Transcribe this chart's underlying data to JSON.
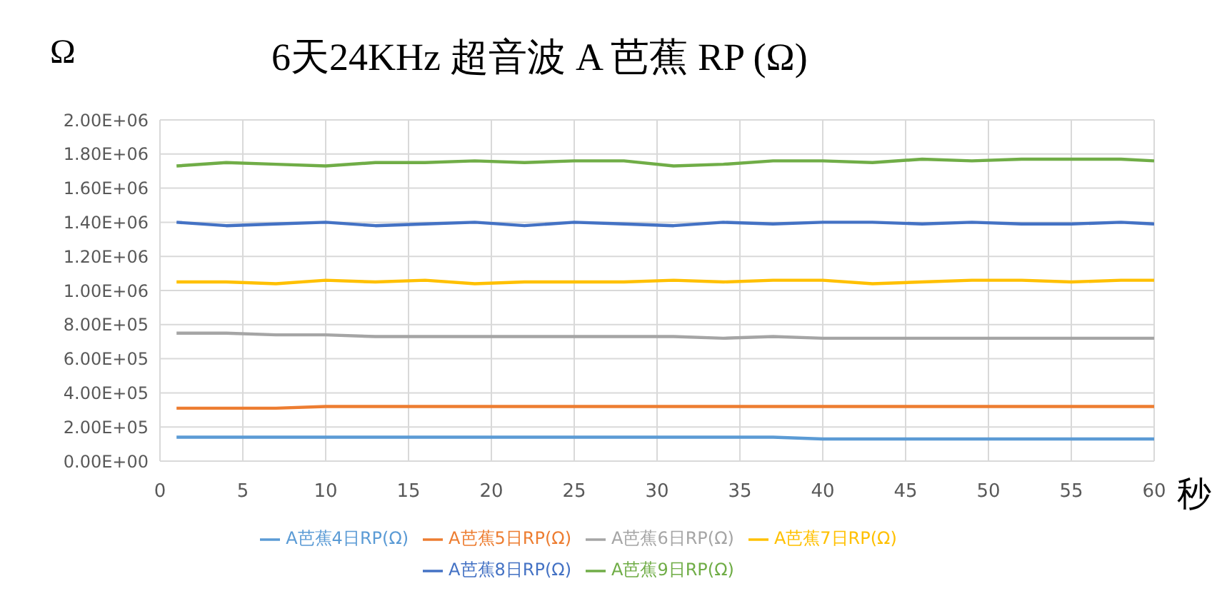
{
  "chart_data": {
    "type": "line",
    "title": "6天24KHz 超音波 A 芭蕉 RP (Ω)",
    "ylabel": "Ω",
    "xlabel": "秒",
    "x": [
      1,
      4,
      7,
      10,
      13,
      16,
      19,
      22,
      25,
      28,
      31,
      34,
      37,
      40,
      43,
      46,
      49,
      52,
      55,
      58,
      60
    ],
    "series": [
      {
        "name": "A芭蕉4日RP(Ω)",
        "color": "#5b9bd5",
        "values": [
          140000,
          140000,
          140000,
          140000,
          140000,
          140000,
          140000,
          140000,
          140000,
          140000,
          140000,
          140000,
          140000,
          130000,
          130000,
          130000,
          130000,
          130000,
          130000,
          130000,
          130000
        ]
      },
      {
        "name": "A芭蕉5日RP(Ω)",
        "color": "#ed7d31",
        "values": [
          310000,
          310000,
          310000,
          320000,
          320000,
          320000,
          320000,
          320000,
          320000,
          320000,
          320000,
          320000,
          320000,
          320000,
          320000,
          320000,
          320000,
          320000,
          320000,
          320000,
          320000
        ]
      },
      {
        "name": "A芭蕉6日RP(Ω)",
        "color": "#a5a5a5",
        "values": [
          750000,
          750000,
          740000,
          740000,
          730000,
          730000,
          730000,
          730000,
          730000,
          730000,
          730000,
          720000,
          730000,
          720000,
          720000,
          720000,
          720000,
          720000,
          720000,
          720000,
          720000
        ]
      },
      {
        "name": "A芭蕉7日RP(Ω)",
        "color": "#ffc000",
        "values": [
          1050000,
          1050000,
          1040000,
          1060000,
          1050000,
          1060000,
          1040000,
          1050000,
          1050000,
          1050000,
          1060000,
          1050000,
          1060000,
          1060000,
          1040000,
          1050000,
          1060000,
          1060000,
          1050000,
          1060000,
          1060000
        ]
      },
      {
        "name": "A芭蕉8日RP(Ω)",
        "color": "#4472c4",
        "values": [
          1400000,
          1380000,
          1390000,
          1400000,
          1380000,
          1390000,
          1400000,
          1380000,
          1400000,
          1390000,
          1380000,
          1400000,
          1390000,
          1400000,
          1400000,
          1390000,
          1400000,
          1390000,
          1390000,
          1400000,
          1390000
        ]
      },
      {
        "name": "A芭蕉9日RP(Ω)",
        "color": "#70ad47",
        "values": [
          1730000,
          1750000,
          1740000,
          1730000,
          1750000,
          1750000,
          1760000,
          1750000,
          1760000,
          1760000,
          1730000,
          1740000,
          1760000,
          1760000,
          1750000,
          1770000,
          1760000,
          1770000,
          1770000,
          1770000,
          1760000
        ]
      }
    ],
    "xlim": [
      0,
      60
    ],
    "xticks": [
      0,
      5,
      10,
      15,
      20,
      25,
      30,
      35,
      40,
      45,
      50,
      55,
      60
    ],
    "ylim": [
      0,
      2000000
    ],
    "yticks": [
      {
        "value": 0,
        "label": "0.00E+00"
      },
      {
        "value": 200000,
        "label": "2.00E+05"
      },
      {
        "value": 400000,
        "label": "4.00E+05"
      },
      {
        "value": 600000,
        "label": "6.00E+05"
      },
      {
        "value": 800000,
        "label": "8.00E+05"
      },
      {
        "value": 1000000,
        "label": "1.00E+06"
      },
      {
        "value": 1200000,
        "label": "1.20E+06"
      },
      {
        "value": 1400000,
        "label": "1.40E+06"
      },
      {
        "value": 1600000,
        "label": "1.60E+06"
      },
      {
        "value": 1800000,
        "label": "1.80E+06"
      },
      {
        "value": 2000000,
        "label": "2.00E+06"
      }
    ],
    "grid": true,
    "legend": "bottom",
    "marker": "none",
    "line_style": "solid"
  }
}
